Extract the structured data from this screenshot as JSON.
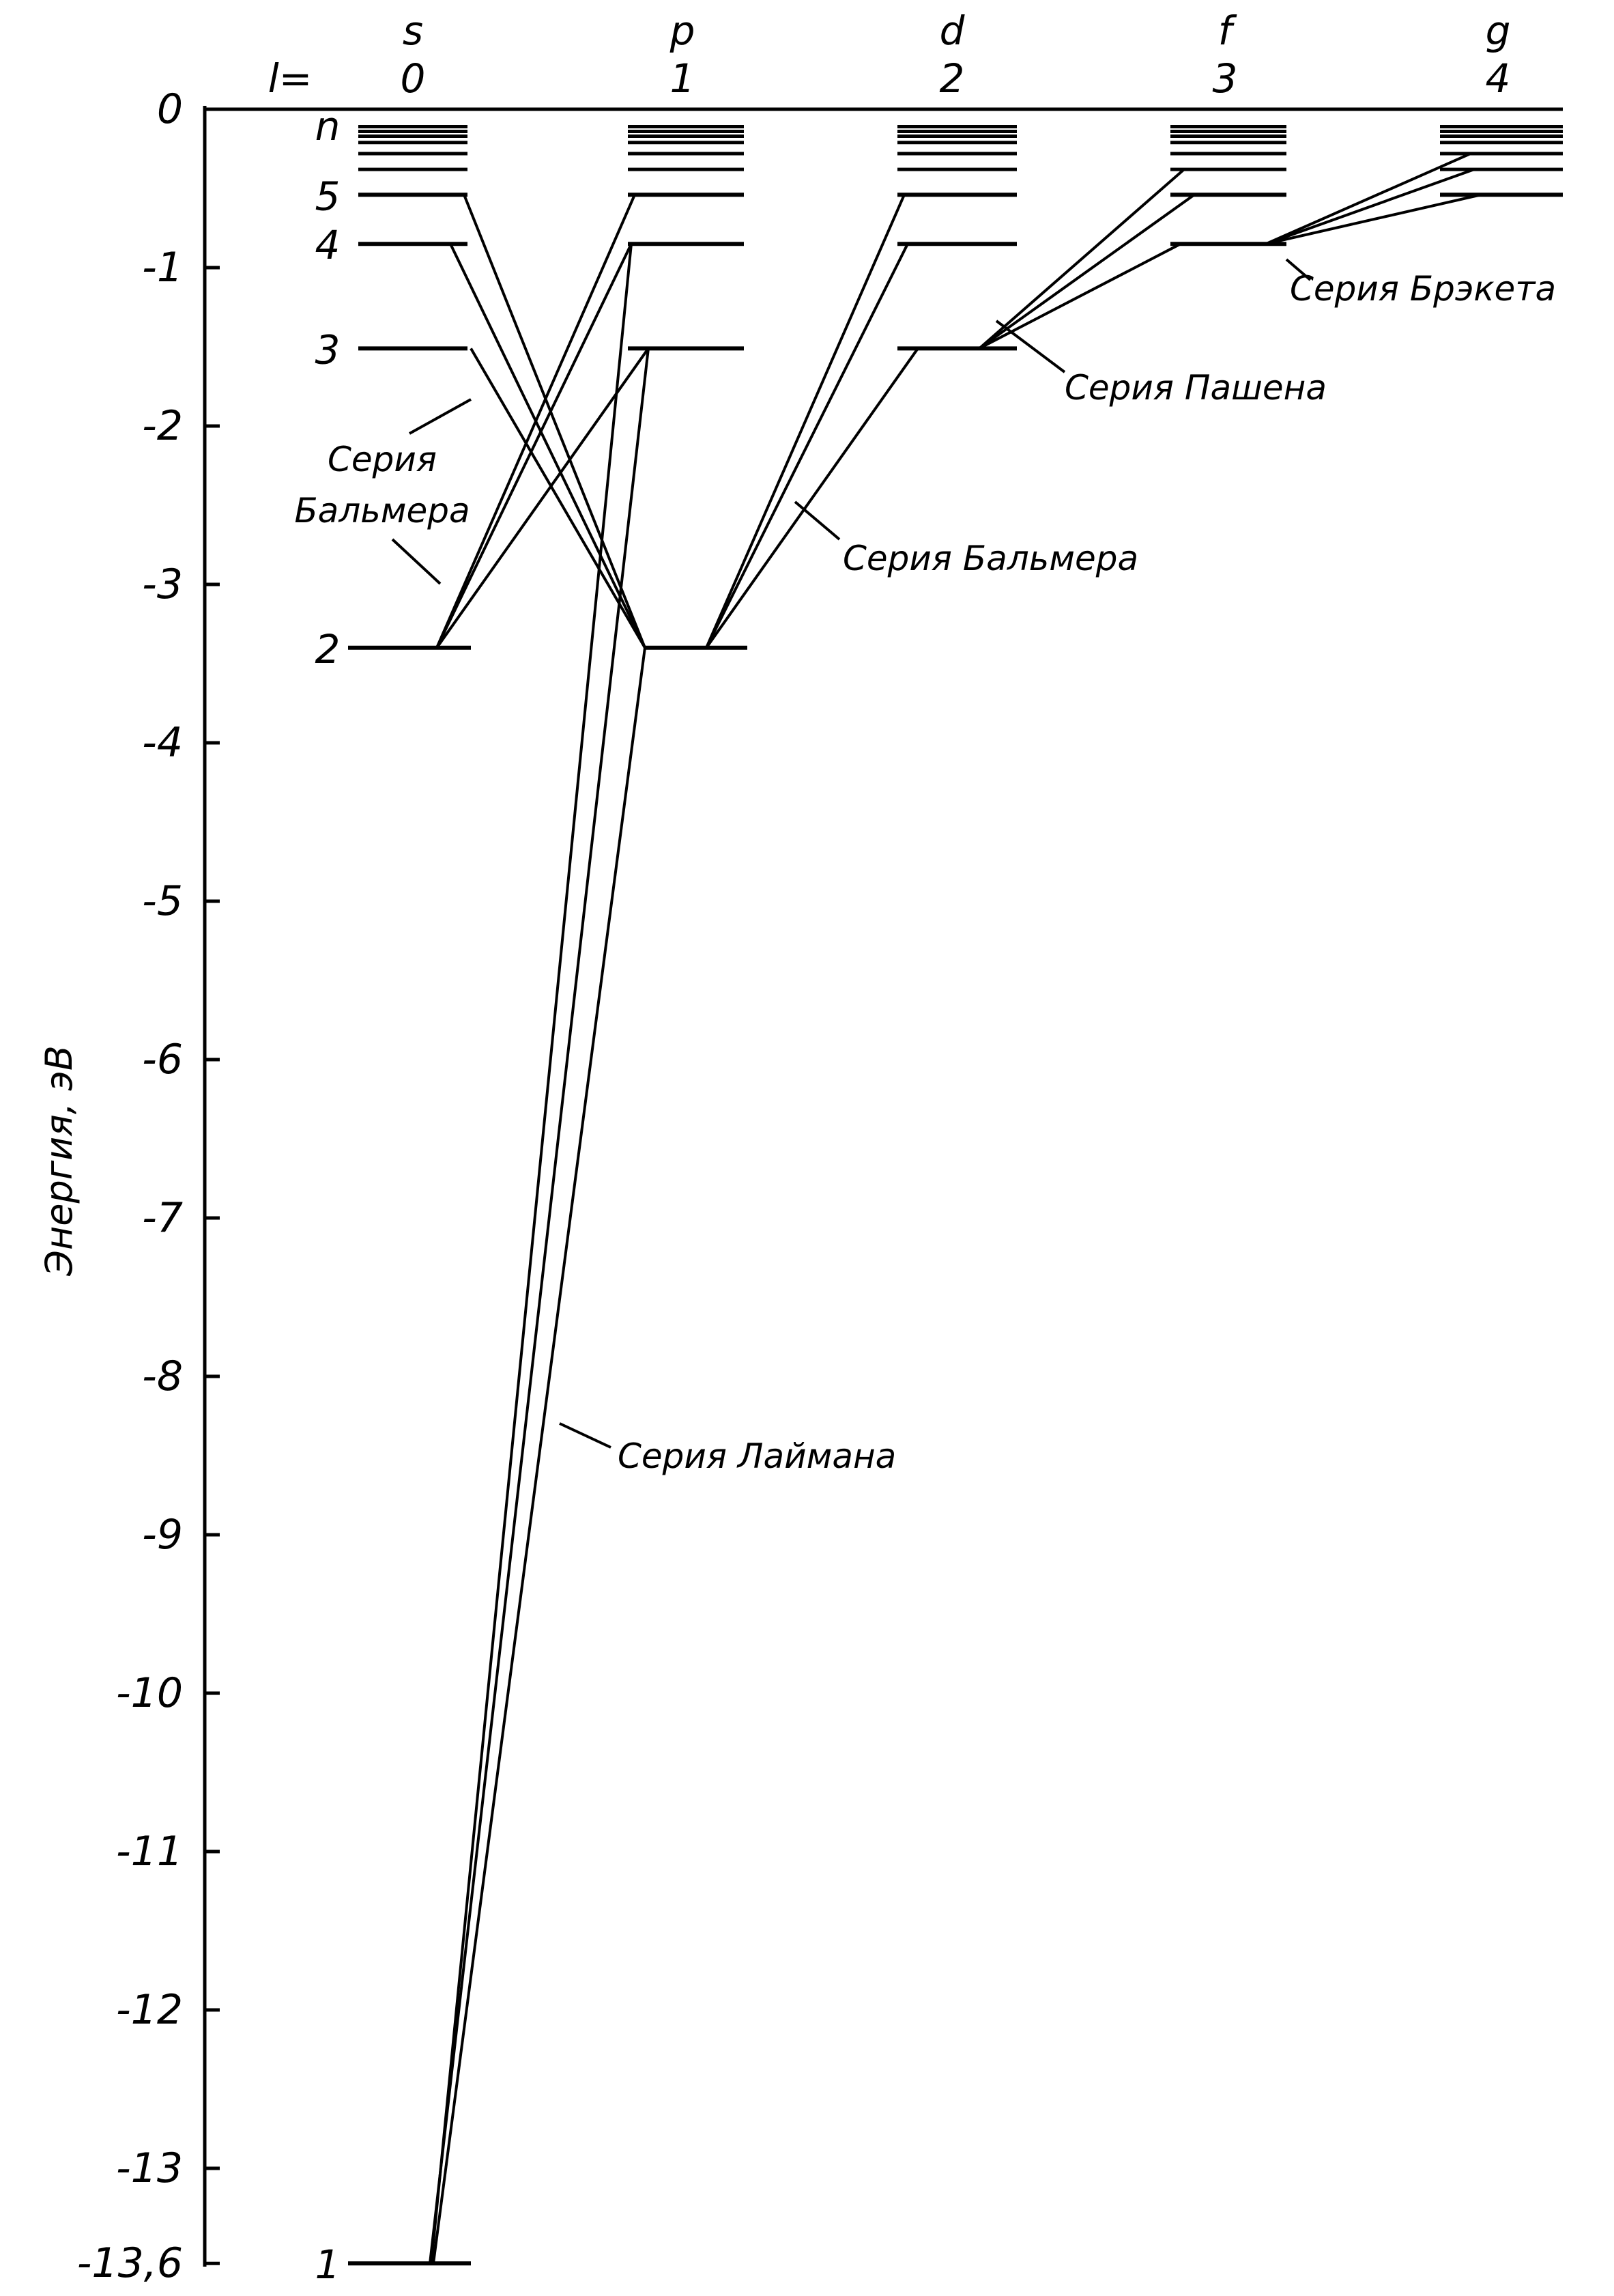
{
  "axis": {
    "title": "Энергия, эВ",
    "ticks": [
      {
        "value": 0,
        "label": "0"
      },
      {
        "value": -1,
        "label": "-1"
      },
      {
        "value": -2,
        "label": "-2"
      },
      {
        "value": -3,
        "label": "-3"
      },
      {
        "value": -4,
        "label": "-4"
      },
      {
        "value": -5,
        "label": "-5"
      },
      {
        "value": -6,
        "label": "-6"
      },
      {
        "value": -7,
        "label": "-7"
      },
      {
        "value": -8,
        "label": "-8"
      },
      {
        "value": -9,
        "label": "-9"
      },
      {
        "value": -10,
        "label": "-10"
      },
      {
        "value": -11,
        "label": "-11"
      },
      {
        "value": -12,
        "label": "-12"
      },
      {
        "value": -13,
        "label": "-13"
      },
      {
        "value": -13.6,
        "label": "-13,6"
      }
    ]
  },
  "l_prefix": "l=",
  "columns": [
    {
      "letter": "s",
      "l": "0"
    },
    {
      "letter": "p",
      "l": "1"
    },
    {
      "letter": "d",
      "l": "2"
    },
    {
      "letter": "f",
      "l": "3"
    },
    {
      "letter": "g",
      "l": "4"
    }
  ],
  "levels": [
    {
      "n": 1,
      "energy": -13.6
    },
    {
      "n": 2,
      "energy": -3.4
    },
    {
      "n": 3,
      "energy": -1.51
    },
    {
      "n": 4,
      "energy": -0.85
    },
    {
      "n": 5,
      "energy": -0.54
    }
  ],
  "n_labels": [
    "1",
    "2",
    "3",
    "4",
    "5",
    "n"
  ],
  "series": [
    {
      "name": "Серия Бальмера",
      "lines": [
        "Серия",
        "Бальмера"
      ]
    },
    {
      "name": "Серия Бальмера",
      "lines": [
        "Серия  Бальмера"
      ]
    },
    {
      "name": "Серия Пашена",
      "lines": [
        "Серия  Пашена"
      ]
    },
    {
      "name": "Серия Брэкета",
      "lines": [
        "Серия  Брэкета"
      ]
    },
    {
      "name": "Серия Лаймана",
      "lines": [
        "Серия  Лаймана"
      ]
    }
  ]
}
